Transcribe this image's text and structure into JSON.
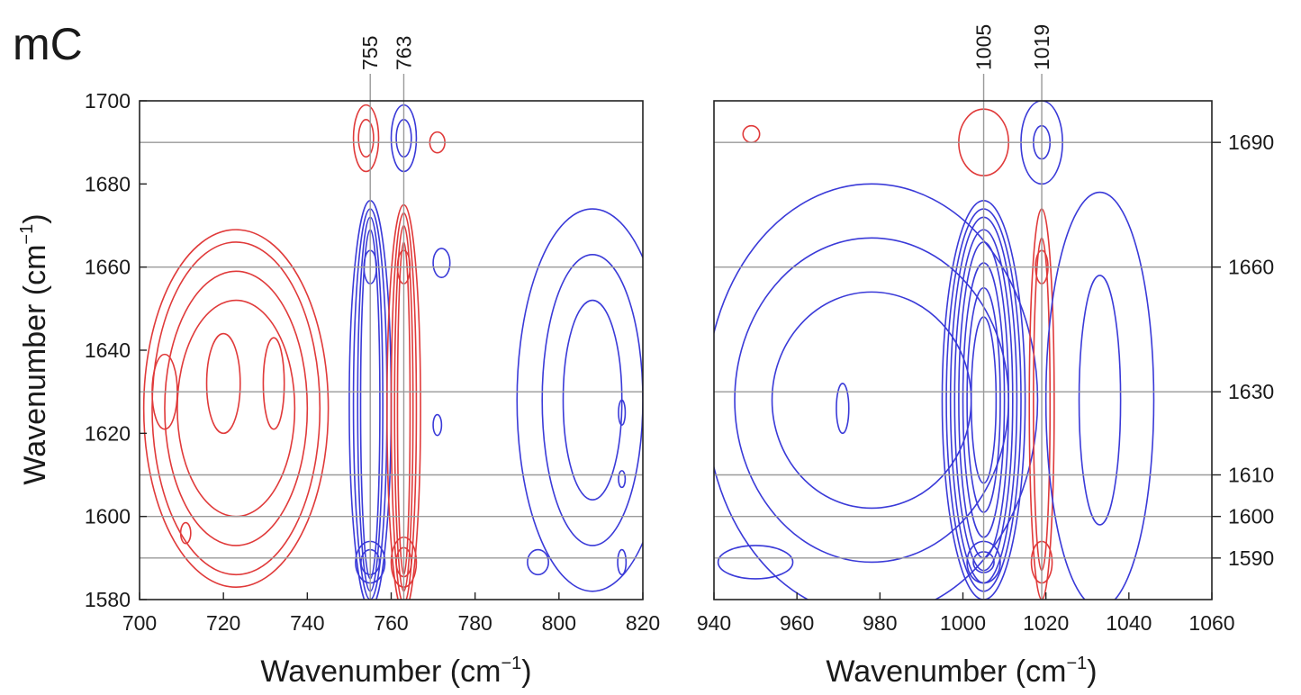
{
  "panel_label": "mC",
  "chart_data": [
    {
      "type": "contour",
      "x": {
        "label": "Wavenumber (cm",
        "unit_sup": "−1",
        "unit_close": ")",
        "lim": [
          700,
          820
        ],
        "ticks": [
          700,
          720,
          740,
          760,
          780,
          800,
          820
        ]
      },
      "y": {
        "label": "Wavenumber (cm",
        "unit_sup": "−1",
        "unit_close": ")",
        "lim": [
          1580,
          1700
        ],
        "ticks": [
          1580,
          1600,
          1620,
          1640,
          1660,
          1680,
          1700
        ]
      },
      "marked_x": [
        "755",
        "763"
      ],
      "marked_x_values": [
        755,
        763
      ],
      "marked_y_values": [
        1590,
        1600,
        1610,
        1630,
        1660,
        1690
      ],
      "colors": {
        "positive": "#e03a3a",
        "negative": "#3a3ad8",
        "grid": "#9a9a9a"
      },
      "contours": [
        {
          "sign": "positive",
          "cx": 723,
          "cy": 1626,
          "rx": [
            22,
            20,
            17,
            14
          ],
          "ry": [
            43,
            40,
            33,
            26
          ]
        },
        {
          "sign": "positive",
          "cx": 706,
          "cy": 1630,
          "rx": [
            3
          ],
          "ry": [
            9
          ]
        },
        {
          "sign": "positive",
          "cx": 720,
          "cy": 1632,
          "rx": [
            4
          ],
          "ry": [
            12
          ]
        },
        {
          "sign": "positive",
          "cx": 732,
          "cy": 1632,
          "rx": [
            2.5
          ],
          "ry": [
            11
          ]
        },
        {
          "sign": "positive",
          "cx": 711,
          "cy": 1596,
          "rx": [
            1.2
          ],
          "ry": [
            2.5
          ]
        },
        {
          "sign": "negative",
          "cx": 755,
          "cy": 1627,
          "rx": [
            5,
            4,
            3,
            2.3
          ],
          "ry": [
            49,
            47,
            45,
            42
          ]
        },
        {
          "sign": "negative",
          "cx": 755,
          "cy": 1589,
          "rx": [
            3.5,
            2.2
          ],
          "ry": [
            5,
            3
          ]
        },
        {
          "sign": "negative",
          "cx": 755,
          "cy": 1660,
          "rx": [
            1.5
          ],
          "ry": [
            4
          ]
        },
        {
          "sign": "negative",
          "cx": 763,
          "cy": 1691,
          "rx": [
            3,
            1.8
          ],
          "ry": [
            8,
            4.5
          ]
        },
        {
          "sign": "positive",
          "cx": 754,
          "cy": 1691,
          "rx": [
            3,
            1.8
          ],
          "ry": [
            8,
            4.5
          ]
        },
        {
          "sign": "positive",
          "cx": 763,
          "cy": 1626,
          "rx": [
            4,
            3,
            2.2,
            1.5
          ],
          "ry": [
            49,
            47,
            44,
            40
          ]
        },
        {
          "sign": "positive",
          "cx": 763,
          "cy": 1589,
          "rx": [
            3,
            1.8
          ],
          "ry": [
            6,
            3.5
          ]
        },
        {
          "sign": "positive",
          "cx": 763,
          "cy": 1660,
          "rx": [
            1.5
          ],
          "ry": [
            4
          ]
        },
        {
          "sign": "positive",
          "cx": 771,
          "cy": 1690,
          "rx": [
            1.8
          ],
          "ry": [
            2.5
          ]
        },
        {
          "sign": "negative",
          "cx": 772,
          "cy": 1661,
          "rx": [
            2
          ],
          "ry": [
            3.5
          ]
        },
        {
          "sign": "negative",
          "cx": 771,
          "cy": 1622,
          "rx": [
            1
          ],
          "ry": [
            2.5
          ]
        },
        {
          "sign": "negative",
          "cx": 808,
          "cy": 1628,
          "rx": [
            18,
            12,
            7
          ],
          "ry": [
            46,
            35,
            24
          ]
        },
        {
          "sign": "negative",
          "cx": 795,
          "cy": 1589,
          "rx": [
            2.5
          ],
          "ry": [
            3
          ]
        },
        {
          "sign": "negative",
          "cx": 815,
          "cy": 1589,
          "rx": [
            1
          ],
          "ry": [
            3
          ]
        },
        {
          "sign": "negative",
          "cx": 815,
          "cy": 1609,
          "rx": [
            0.8
          ],
          "ry": [
            2
          ]
        },
        {
          "sign": "negative",
          "cx": 815,
          "cy": 1625,
          "rx": [
            0.8
          ],
          "ry": [
            3
          ]
        }
      ]
    },
    {
      "type": "contour",
      "x": {
        "label": "Wavenumber (cm",
        "unit_sup": "−1",
        "unit_close": ")",
        "lim": [
          940,
          1060
        ],
        "ticks": [
          940,
          960,
          980,
          1000,
          1020,
          1040,
          1060
        ]
      },
      "y": {
        "lim": [
          1580,
          1700
        ],
        "right_ticks": [
          1590,
          1600,
          1610,
          1630,
          1660,
          1690
        ]
      },
      "marked_x": [
        "1005",
        "1019"
      ],
      "marked_x_values": [
        1005,
        1019
      ],
      "marked_y_values": [
        1590,
        1600,
        1610,
        1630,
        1660,
        1690
      ],
      "colors": {
        "positive": "#e03a3a",
        "negative": "#3a3ad8",
        "grid": "#9a9a9a"
      },
      "contours": [
        {
          "sign": "negative",
          "cx": 978,
          "cy": 1628,
          "rx": [
            40,
            33,
            24
          ],
          "ry": [
            52,
            39,
            26
          ]
        },
        {
          "sign": "negative",
          "cx": 950,
          "cy": 1589,
          "rx": [
            9
          ],
          "ry": [
            4
          ]
        },
        {
          "sign": "negative",
          "cx": 971,
          "cy": 1626,
          "rx": [
            1.5
          ],
          "ry": [
            6
          ]
        },
        {
          "sign": "negative",
          "cx": 1005,
          "cy": 1628,
          "rx": [
            10,
            9,
            8,
            7,
            6,
            5,
            4,
            3
          ],
          "ry": [
            48,
            46,
            44,
            41,
            38,
            33,
            27,
            20
          ]
        },
        {
          "sign": "negative",
          "cx": 1005,
          "cy": 1589,
          "rx": [
            4,
            2.5
          ],
          "ry": [
            5,
            2.5
          ]
        },
        {
          "sign": "positive",
          "cx": 1005,
          "cy": 1690,
          "rx": [
            6
          ],
          "ry": [
            8
          ]
        },
        {
          "sign": "positive",
          "cx": 949,
          "cy": 1692,
          "rx": [
            2
          ],
          "ry": [
            2
          ]
        },
        {
          "sign": "negative",
          "cx": 1019,
          "cy": 1690,
          "rx": [
            5,
            2
          ],
          "ry": [
            10,
            4
          ]
        },
        {
          "sign": "positive",
          "cx": 1019,
          "cy": 1627,
          "rx": [
            3,
            2
          ],
          "ry": [
            47,
            40
          ]
        },
        {
          "sign": "positive",
          "cx": 1019,
          "cy": 1589,
          "rx": [
            2.5
          ],
          "ry": [
            5
          ]
        },
        {
          "sign": "positive",
          "cx": 1019,
          "cy": 1660,
          "rx": [
            1.5
          ],
          "ry": [
            4
          ]
        },
        {
          "sign": "negative",
          "cx": 1033,
          "cy": 1628,
          "rx": [
            13,
            5
          ],
          "ry": [
            50,
            30
          ]
        }
      ]
    }
  ]
}
